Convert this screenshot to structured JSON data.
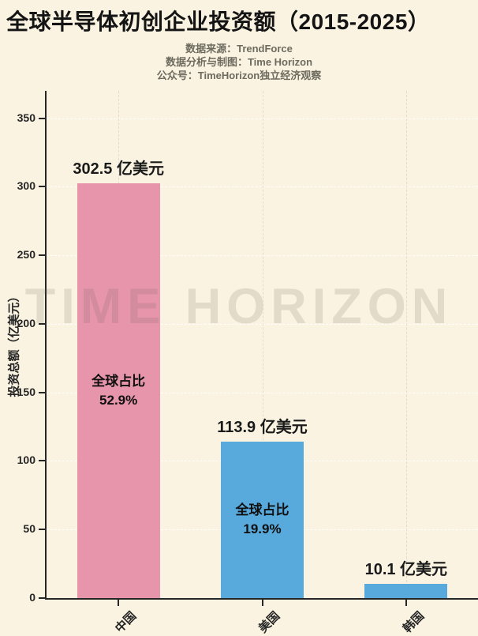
{
  "header": {
    "title": "全球半导体初创企业投资额（2015-2025）",
    "source_line": "数据来源：TrendForce",
    "analysis_line": "数据分析与制图：Time Horizon",
    "account_line": "公众号：TimeHorizon独立经济观察"
  },
  "watermark": "TIME HORIZON",
  "colors": {
    "background": "#faf3e1",
    "china_bar": "#e795ab",
    "usa_bar": "#58aadd",
    "korea_bar": "#58aadd",
    "axis": "#262626",
    "subtitle_text": "#6d6a5e"
  },
  "chart_data": {
    "type": "bar",
    "title": "全球半导体初创企业投资额（2015-2025）",
    "categories": [
      "中国",
      "美国",
      "韩国"
    ],
    "values": [
      302.5,
      113.9,
      10.1
    ],
    "value_labels": [
      "302.5 亿美元",
      "113.9 亿美元",
      "10.1 亿美元"
    ],
    "annotations": [
      [
        "全球占比",
        "52.9%"
      ],
      [
        "全球占比",
        "19.9%"
      ],
      []
    ],
    "bar_colors": [
      "#e795ab",
      "#58aadd",
      "#58aadd"
    ],
    "xlabel": "",
    "ylabel": "投资总额（亿美元）",
    "ylim": [
      0,
      370
    ],
    "yticks": [
      0,
      50,
      100,
      150,
      200,
      250,
      300,
      350
    ],
    "grid": true,
    "legend": null,
    "unit": "亿美元"
  }
}
